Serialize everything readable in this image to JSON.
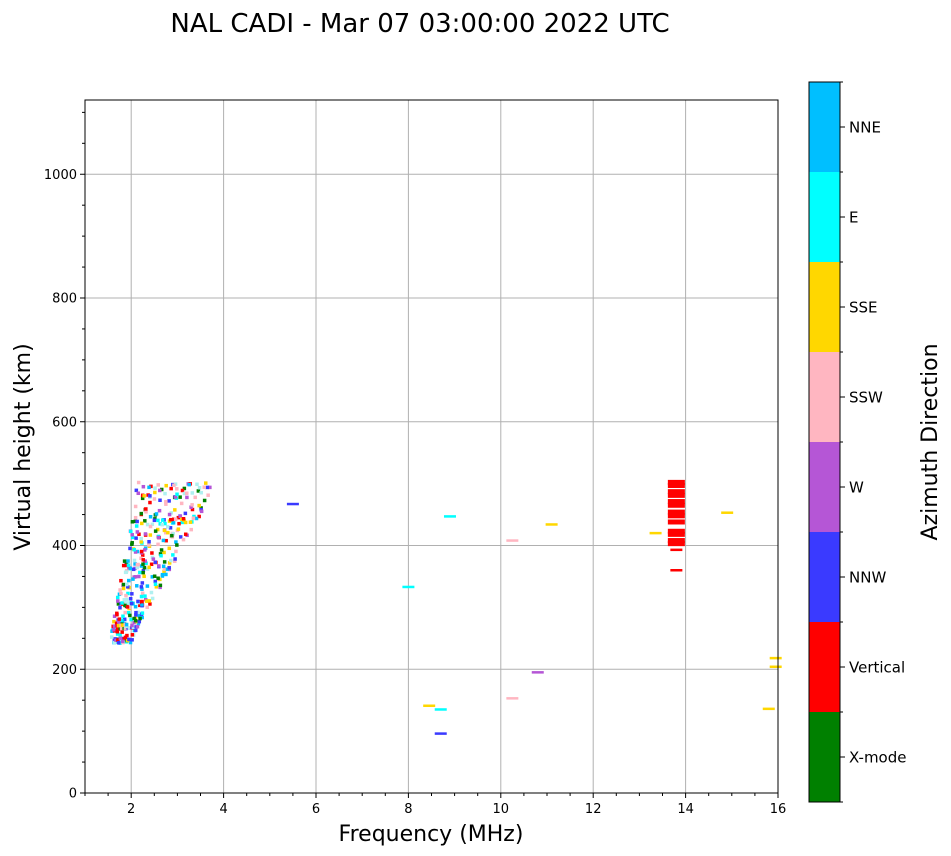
{
  "chart_data": {
    "type": "scatter",
    "title": "NAL CADI - Mar 07 03:00:00 2022 UTC",
    "xlabel": "Frequency (MHz)",
    "ylabel": "Virtual height (km)",
    "xlim": [
      1,
      16
    ],
    "ylim": [
      0,
      1120
    ],
    "xticks": [
      2,
      4,
      6,
      8,
      10,
      12,
      14,
      16
    ],
    "yticks": [
      0,
      200,
      400,
      600,
      800,
      1000
    ],
    "grid": true,
    "colorbar": {
      "label": "Azimuth Direction",
      "categories": [
        {
          "name": "X-mode",
          "color": "#008000"
        },
        {
          "name": "Vertical",
          "color": "#ff0000"
        },
        {
          "name": "NNW",
          "color": "#3a3aff"
        },
        {
          "name": "W",
          "color": "#b556d6"
        },
        {
          "name": "SSW",
          "color": "#ffb6c1"
        },
        {
          "name": "SSE",
          "color": "#ffd700"
        },
        {
          "name": "E",
          "color": "#00ffff"
        },
        {
          "name": "NNE",
          "color": "#00bfff"
        }
      ]
    },
    "cluster": {
      "note": "dense low-frequency echo cluster, approx 1.5-3.8 MHz, 245-505 km",
      "fmin": 1.5,
      "fmax": 3.8,
      "hmin": 245,
      "hmax": 505
    },
    "points": [
      {
        "f": 5.5,
        "h": 467,
        "dir": "NNW"
      },
      {
        "f": 8.9,
        "h": 447,
        "dir": "E"
      },
      {
        "f": 8.0,
        "h": 333,
        "dir": "E"
      },
      {
        "f": 10.25,
        "h": 408,
        "dir": "SSW"
      },
      {
        "f": 11.1,
        "h": 434,
        "dir": "SSE"
      },
      {
        "f": 10.8,
        "h": 195,
        "dir": "W"
      },
      {
        "f": 10.25,
        "h": 153,
        "dir": "SSW"
      },
      {
        "f": 8.45,
        "h": 141,
        "dir": "SSE"
      },
      {
        "f": 8.7,
        "h": 135,
        "dir": "E"
      },
      {
        "f": 8.7,
        "h": 96,
        "dir": "NNW"
      },
      {
        "f": 13.35,
        "h": 420,
        "dir": "SSE"
      },
      {
        "f": 14.9,
        "h": 453,
        "dir": "SSE"
      },
      {
        "f": 15.8,
        "h": 136,
        "dir": "SSE"
      },
      {
        "f": 15.95,
        "h": 218,
        "dir": "SSE"
      },
      {
        "f": 15.95,
        "h": 204,
        "dir": "SSE"
      },
      {
        "f": 13.8,
        "h": 502,
        "dir": "Vertical"
      },
      {
        "f": 13.8,
        "h": 497,
        "dir": "Vertical"
      },
      {
        "f": 13.8,
        "h": 487,
        "dir": "Vertical"
      },
      {
        "f": 13.8,
        "h": 481,
        "dir": "Vertical"
      },
      {
        "f": 13.8,
        "h": 471,
        "dir": "Vertical"
      },
      {
        "f": 13.8,
        "h": 465,
        "dir": "Vertical"
      },
      {
        "f": 13.8,
        "h": 454,
        "dir": "Vertical"
      },
      {
        "f": 13.8,
        "h": 448,
        "dir": "Vertical"
      },
      {
        "f": 13.8,
        "h": 438,
        "dir": "Vertical"
      },
      {
        "f": 13.8,
        "h": 423,
        "dir": "Vertical"
      },
      {
        "f": 13.8,
        "h": 418,
        "dir": "Vertical"
      },
      {
        "f": 13.8,
        "h": 408,
        "dir": "Vertical"
      },
      {
        "f": 13.8,
        "h": 403,
        "dir": "Vertical"
      },
      {
        "f": 13.8,
        "h": 393,
        "dir": "Vertical"
      },
      {
        "f": 13.8,
        "h": 360,
        "dir": "Vertical"
      }
    ]
  }
}
